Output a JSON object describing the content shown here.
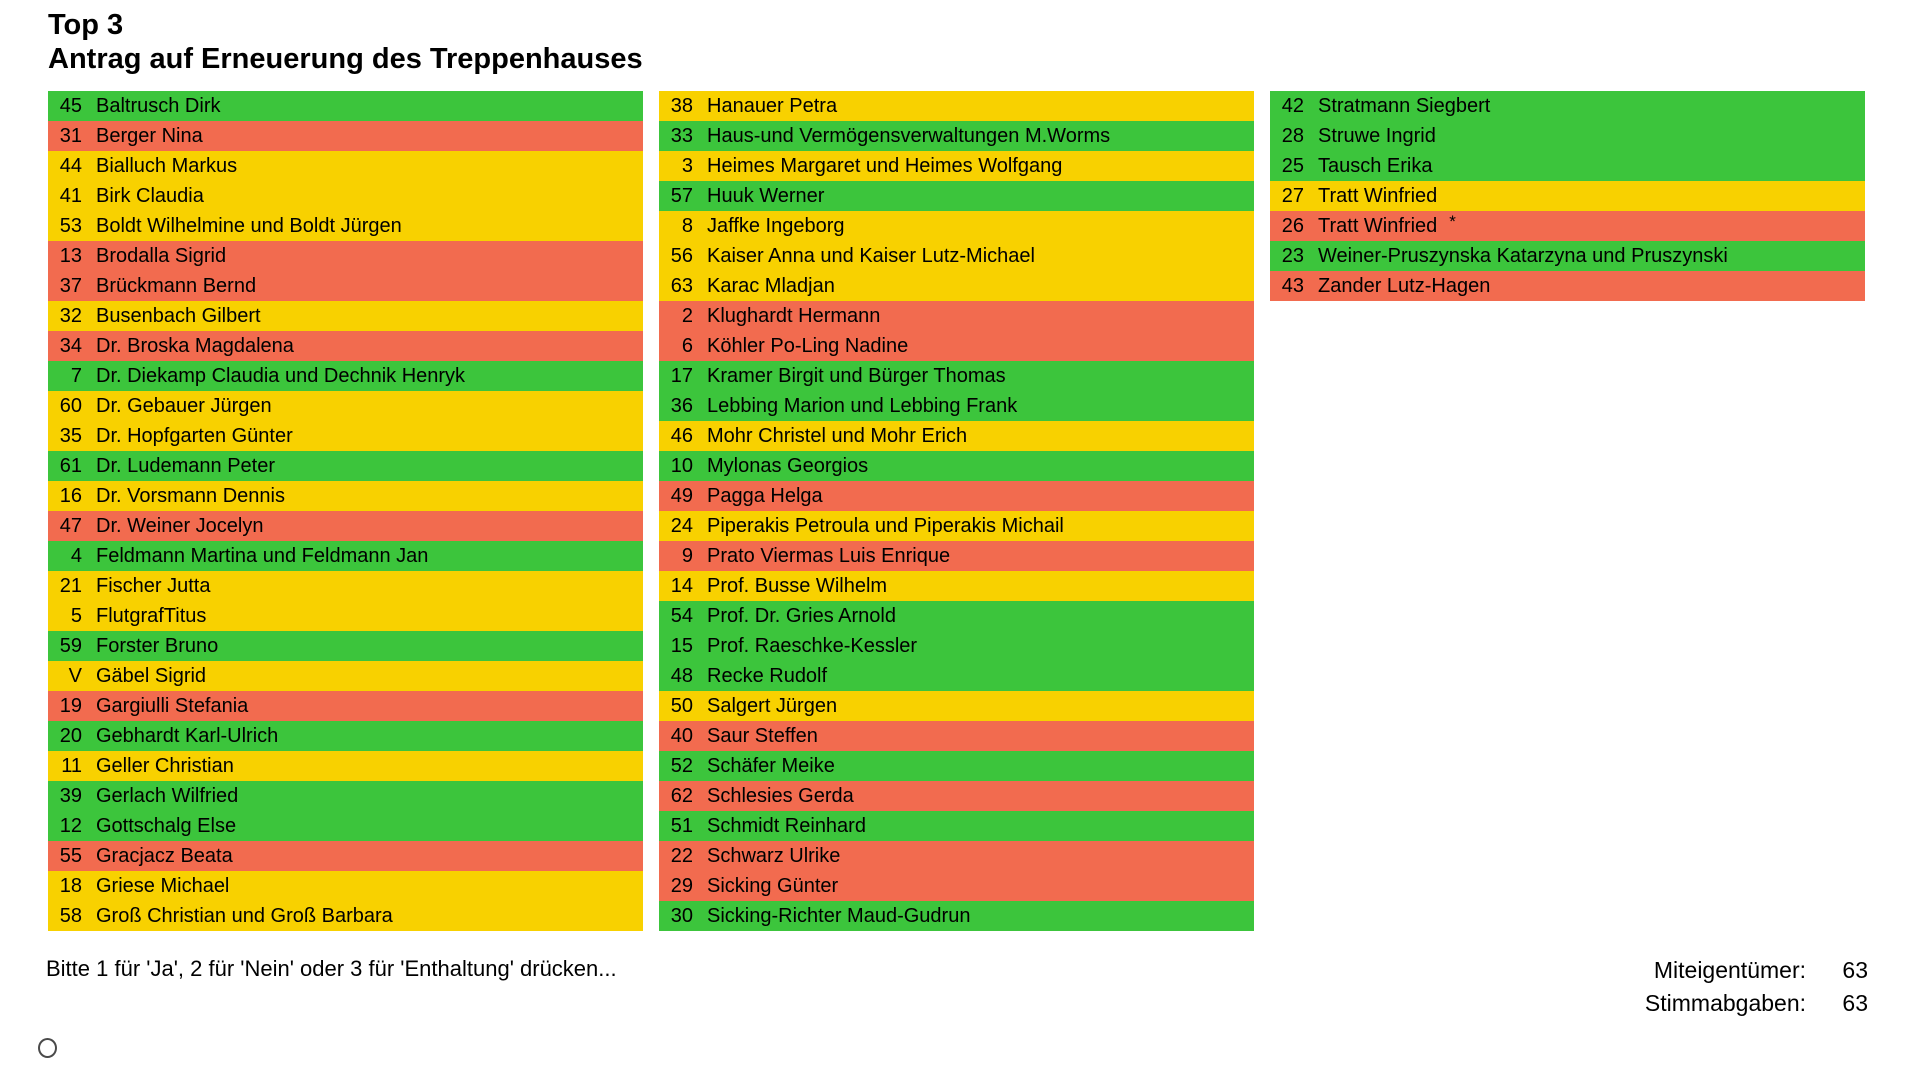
{
  "title": {
    "line1": "Top 3",
    "line2": "Antrag auf Erneuerung des Treppenhauses"
  },
  "colors": {
    "green": "#3CC53C",
    "red": "#F26B4F",
    "yellow": "#F8D100"
  },
  "columns": [
    {
      "rows": [
        {
          "num": "45",
          "name": "Baltrusch Dirk",
          "vote": "green"
        },
        {
          "num": "31",
          "name": "Berger Nina",
          "vote": "red"
        },
        {
          "num": "44",
          "name": "Bialluch Markus",
          "vote": "yellow"
        },
        {
          "num": "41",
          "name": "Birk Claudia",
          "vote": "yellow"
        },
        {
          "num": "53",
          "name": "Boldt Wilhelmine und Boldt Jürgen",
          "vote": "yellow"
        },
        {
          "num": "13",
          "name": "Brodalla Sigrid",
          "vote": "red"
        },
        {
          "num": "37",
          "name": "Brückmann Bernd",
          "vote": "red"
        },
        {
          "num": "32",
          "name": "Busenbach Gilbert",
          "vote": "yellow"
        },
        {
          "num": "34",
          "name": "Dr. Broska Magdalena",
          "vote": "red"
        },
        {
          "num": "7",
          "name": "Dr. Diekamp Claudia und Dechnik Henryk",
          "vote": "green"
        },
        {
          "num": "60",
          "name": "Dr. Gebauer Jürgen",
          "vote": "yellow"
        },
        {
          "num": "35",
          "name": "Dr. Hopfgarten Günter",
          "vote": "yellow"
        },
        {
          "num": "61",
          "name": "Dr. Ludemann Peter",
          "vote": "green"
        },
        {
          "num": "16",
          "name": "Dr. Vorsmann Dennis",
          "vote": "yellow"
        },
        {
          "num": "47",
          "name": "Dr. Weiner Jocelyn",
          "vote": "red"
        },
        {
          "num": "4",
          "name": "Feldmann Martina und Feldmann Jan",
          "vote": "green"
        },
        {
          "num": "21",
          "name": "Fischer Jutta",
          "vote": "yellow"
        },
        {
          "num": "5",
          "name": "FlutgrafTitus",
          "vote": "yellow"
        },
        {
          "num": "59",
          "name": "Forster Bruno",
          "vote": "green"
        },
        {
          "num": "V",
          "name": "Gäbel Sigrid",
          "vote": "yellow"
        },
        {
          "num": "19",
          "name": "Gargiulli Stefania",
          "vote": "red"
        },
        {
          "num": "20",
          "name": "Gebhardt Karl-Ulrich",
          "vote": "green"
        },
        {
          "num": "11",
          "name": "Geller Christian",
          "vote": "yellow"
        },
        {
          "num": "39",
          "name": "Gerlach Wilfried",
          "vote": "green"
        },
        {
          "num": "12",
          "name": "Gottschalg Else",
          "vote": "green"
        },
        {
          "num": "55",
          "name": "Gracjacz Beata",
          "vote": "red"
        },
        {
          "num": "18",
          "name": "Griese Michael",
          "vote": "yellow"
        },
        {
          "num": "58",
          "name": "Groß Christian und Groß Barbara",
          "vote": "yellow"
        }
      ]
    },
    {
      "rows": [
        {
          "num": "38",
          "name": "Hanauer Petra",
          "vote": "yellow"
        },
        {
          "num": "33",
          "name": "Haus-und Vermögensverwaltungen M.Worms",
          "vote": "green"
        },
        {
          "num": "3",
          "name": "Heimes Margaret und Heimes Wolfgang",
          "vote": "yellow"
        },
        {
          "num": "57",
          "name": "Huuk Werner",
          "vote": "green"
        },
        {
          "num": "8",
          "name": "Jaffke Ingeborg",
          "vote": "yellow"
        },
        {
          "num": "56",
          "name": "Kaiser Anna und Kaiser Lutz-Michael",
          "vote": "yellow"
        },
        {
          "num": "63",
          "name": "Karac Mladjan",
          "vote": "yellow"
        },
        {
          "num": "2",
          "name": "Klughardt Hermann",
          "vote": "red"
        },
        {
          "num": "6",
          "name": "Köhler Po-Ling Nadine",
          "vote": "red"
        },
        {
          "num": "17",
          "name": "Kramer Birgit und Bürger Thomas",
          "vote": "green"
        },
        {
          "num": "36",
          "name": "Lebbing Marion und Lebbing Frank",
          "vote": "green"
        },
        {
          "num": "46",
          "name": "Mohr Christel und Mohr Erich",
          "vote": "yellow"
        },
        {
          "num": "10",
          "name": "Mylonas Georgios",
          "vote": "green"
        },
        {
          "num": "49",
          "name": "Pagga Helga",
          "vote": "red"
        },
        {
          "num": "24",
          "name": "Piperakis Petroula und Piperakis Michail",
          "vote": "yellow"
        },
        {
          "num": "9",
          "name": "Prato Viermas Luis Enrique",
          "vote": "red"
        },
        {
          "num": "14",
          "name": "Prof. Busse Wilhelm",
          "vote": "yellow"
        },
        {
          "num": "54",
          "name": "Prof. Dr. Gries Arnold",
          "vote": "green"
        },
        {
          "num": "15",
          "name": "Prof. Raeschke-Kessler",
          "vote": "green"
        },
        {
          "num": "48",
          "name": "Recke Rudolf",
          "vote": "green"
        },
        {
          "num": "50",
          "name": "Salgert Jürgen",
          "vote": "yellow"
        },
        {
          "num": "40",
          "name": "Saur Steffen",
          "vote": "red"
        },
        {
          "num": "52",
          "name": "Schäfer Meike",
          "vote": "green"
        },
        {
          "num": "62",
          "name": "Schlesies Gerda",
          "vote": "red"
        },
        {
          "num": "51",
          "name": "Schmidt Reinhard",
          "vote": "green"
        },
        {
          "num": "22",
          "name": "Schwarz Ulrike",
          "vote": "red"
        },
        {
          "num": "29",
          "name": "Sicking Günter",
          "vote": "red"
        },
        {
          "num": "30",
          "name": "Sicking-Richter Maud-Gudrun",
          "vote": "green"
        }
      ]
    },
    {
      "rows": [
        {
          "num": "42",
          "name": "Stratmann Siegbert",
          "vote": "green"
        },
        {
          "num": "28",
          "name": "Struwe Ingrid",
          "vote": "green"
        },
        {
          "num": "25",
          "name": "Tausch Erika",
          "vote": "green"
        },
        {
          "num": "27",
          "name": "Tratt Winfried",
          "vote": "yellow"
        },
        {
          "num": "26",
          "name": "Tratt Winfried",
          "mark": "*",
          "vote": "red"
        },
        {
          "num": "23",
          "name": "Weiner-Pruszynska Katarzyna und Pruszynski",
          "vote": "green"
        },
        {
          "num": "43",
          "name": "Zander Lutz-Hagen",
          "vote": "red"
        }
      ]
    }
  ],
  "footer": {
    "instruction": "Bitte 1 für 'Ja', 2 für 'Nein' oder 3 für 'Enthaltung' drücken...",
    "counters": [
      {
        "label": "Miteigentümer:",
        "value": "63"
      },
      {
        "label": "Stimmabgaben:",
        "value": "63"
      }
    ]
  }
}
